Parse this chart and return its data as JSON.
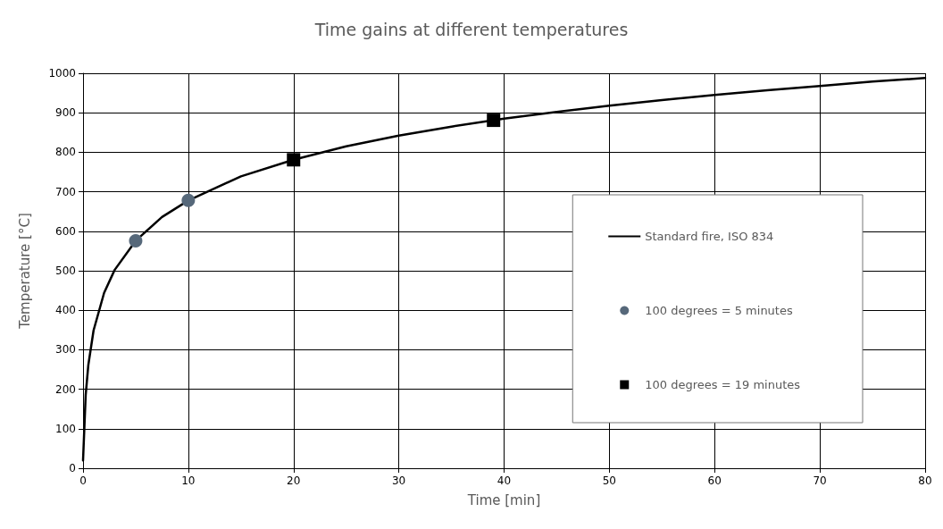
{
  "chart_data": {
    "type": "line",
    "title": "Time gains at different temperatures",
    "xlabel": "Time [min]",
    "ylabel": "Temperature [°C]",
    "xlim": [
      0,
      80
    ],
    "xticks": [
      0,
      10,
      20,
      30,
      40,
      50,
      60,
      70,
      80
    ],
    "ylim": [
      0,
      1000
    ],
    "yticks": [
      0,
      100,
      200,
      300,
      400,
      500,
      600,
      700,
      800,
      900,
      1000
    ],
    "grid": true,
    "legend": "right",
    "marker": "none",
    "line_style": "solid",
    "series": [
      {
        "name": "Standard fire, ISO 834",
        "color": "#000000",
        "x": [
          0,
          0.25,
          0.5,
          1,
          2,
          3,
          5,
          7.5,
          10,
          15,
          20,
          25,
          30,
          35,
          40,
          45,
          50,
          55,
          60,
          65,
          70,
          75,
          80
        ],
        "values": [
          20,
          185,
          261,
          349,
          444,
          502,
          576,
          636,
          678,
          739,
          781,
          815,
          842,
          865,
          885,
          902,
          918,
          932,
          945,
          957,
          968,
          979,
          988
        ]
      },
      {
        "name": "100 degrees = 5 minutes",
        "type": "scatter",
        "marker": "circle",
        "color": "#56687a",
        "x": [
          5,
          10
        ],
        "values": [
          576,
          678
        ]
      },
      {
        "name": "100 degrees = 19 minutes",
        "type": "scatter",
        "marker": "square",
        "color": "#000000",
        "x": [
          20,
          39
        ],
        "values": [
          781,
          881
        ]
      }
    ]
  }
}
